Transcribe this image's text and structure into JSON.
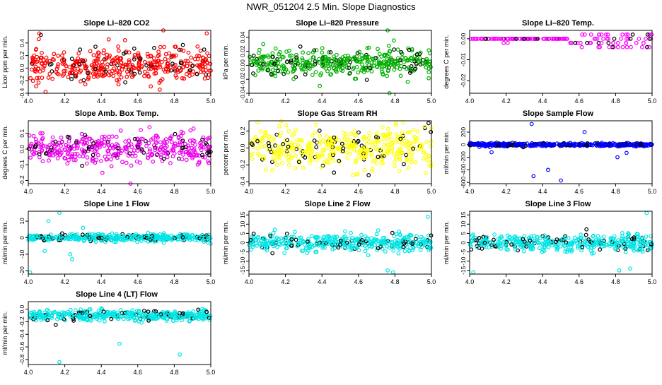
{
  "title": "NWR_051204  2.5 Min. Slope Diagnostics",
  "chart_data": [
    {
      "type": "scatter",
      "title": "Slope Li–820 CO2",
      "ylabel": "Licor ppm per min.",
      "xlim": [
        4.0,
        5.0
      ],
      "ylim": [
        -0.4,
        0.6
      ],
      "xticks": [
        "4.0",
        "4.2",
        "4.4",
        "4.6",
        "4.8",
        "5.0"
      ],
      "yticks": [
        -0.4,
        -0.2,
        0.0,
        0.2,
        0.4
      ],
      "ytick_labels": [
        "-0.4",
        "-0.2",
        "0.0",
        "0.2",
        "0.4"
      ],
      "colors": [
        "#ff0000",
        "#000000"
      ],
      "spread": 0.32,
      "center": 0.05,
      "count": 420,
      "outliers": [
        [
          4.06,
          0.55
        ],
        [
          4.74,
          0.6
        ]
      ],
      "seed": 11
    },
    {
      "type": "scatter",
      "title": "Slope Li–820 Pressure",
      "ylabel": "kPa per min.",
      "xlim": [
        4.0,
        5.0
      ],
      "ylim": [
        -0.04,
        0.05
      ],
      "xticks": [
        "4.0",
        "4.2",
        "4.4",
        "4.6",
        "4.8",
        "5.0"
      ],
      "yticks": [
        -0.04,
        -0.02,
        0.0,
        0.02,
        0.04
      ],
      "ytick_labels": [
        "-0.04",
        "-0.02",
        "0.00",
        "0.02",
        "0.04"
      ],
      "colors": [
        "#00b000",
        "#000000"
      ],
      "spread": 0.022,
      "center": 0.004,
      "count": 420,
      "outliers": [
        [
          4.76,
          0.05
        ],
        [
          4.77,
          -0.04
        ]
      ],
      "seed": 23
    },
    {
      "type": "scatter",
      "title": "Slope Li–820 Temp.",
      "ylabel": "degrees C per min.",
      "xlim": [
        4.0,
        5.0
      ],
      "ylim": [
        -0.026,
        0.004
      ],
      "xticks": [
        "4.0",
        "4.2",
        "4.4",
        "4.6",
        "4.8",
        "5.0"
      ],
      "yticks": [
        -0.02,
        -0.01,
        0.0
      ],
      "ytick_labels": [
        "-0.02",
        "-0.01",
        "0.00"
      ],
      "colors": [
        "#ff00ff",
        "#000000"
      ],
      "mode": "levels",
      "levels": [
        0.002,
        0.0,
        -0.002,
        -0.004
      ],
      "count": 160,
      "seed": 37
    },
    {
      "type": "scatter",
      "title": "Slope Amb. Box Temp.",
      "ylabel": "degrees C per min.",
      "xlim": [
        4.0,
        5.0
      ],
      "ylim": [
        -0.22,
        0.18
      ],
      "xticks": [
        "4.0",
        "4.2",
        "4.4",
        "4.6",
        "4.8",
        "5.0"
      ],
      "yticks": [
        -0.2,
        -0.1,
        0.0,
        0.1
      ],
      "ytick_labels": [
        "-0.2",
        "-0.1",
        "0.0",
        "0.1"
      ],
      "colors": [
        "#ee00ee",
        "#000000"
      ],
      "spread": 0.11,
      "center": 0.0,
      "count": 420,
      "outliers": [
        [
          4.56,
          -0.22
        ]
      ],
      "seed": 41
    },
    {
      "type": "scatter",
      "title": "Slope Gas Stream RH",
      "ylabel": "percent per min.",
      "xlim": [
        4.0,
        5.0
      ],
      "ylim": [
        -0.42,
        0.32
      ],
      "xticks": [
        "4.0",
        "4.2",
        "4.4",
        "4.6",
        "4.8",
        "5.0"
      ],
      "yticks": [
        -0.4,
        -0.2,
        0.0,
        0.2
      ],
      "ytick_labels": [
        "-0.4",
        "-0.2",
        "0.0",
        "0.2"
      ],
      "colors": [
        "#ffff00",
        "#000000"
      ],
      "spread": 0.3,
      "center": 0.0,
      "count": 440,
      "outliers": [],
      "seed": 53
    },
    {
      "type": "scatter",
      "title": "Slope Sample Flow",
      "ylabel": "ml/min per min.",
      "xlim": [
        4.0,
        5.0
      ],
      "ylim": [
        -620,
        380
      ],
      "xticks": [
        "4.0",
        "4.2",
        "4.4",
        "4.6",
        "4.8",
        "5.0"
      ],
      "yticks": [
        -600,
        -400,
        -200,
        0,
        200
      ],
      "ytick_labels": [
        "-600",
        "-400",
        "-200",
        "0",
        "200"
      ],
      "colors": [
        "#0000ff",
        "#000000"
      ],
      "mode": "flat",
      "band": 25,
      "count": 420,
      "outliers": [
        [
          4.34,
          330
        ],
        [
          4.35,
          -500
        ],
        [
          4.43,
          -400
        ],
        [
          4.5,
          -570
        ],
        [
          4.81,
          -200
        ],
        [
          4.86,
          -130
        ],
        [
          4.63,
          200
        ],
        [
          4.12,
          -120
        ]
      ],
      "seed": 67
    },
    {
      "type": "scatter",
      "title": "Slope Line 1 Flow",
      "ylabel": "ml/min per min.",
      "xlim": [
        4.0,
        5.0
      ],
      "ylim": [
        -22,
        16
      ],
      "xticks": [
        "4.0",
        "4.2",
        "4.4",
        "4.6",
        "4.8",
        "5.0"
      ],
      "yticks": [
        -20,
        -10,
        0,
        10
      ],
      "ytick_labels": [
        "-20",
        "-10",
        "0",
        "10"
      ],
      "colors": [
        "#00e5e5",
        "#000000"
      ],
      "mode": "flat",
      "band": 2.2,
      "count": 420,
      "outliers": [
        [
          4.01,
          -21
        ],
        [
          4.17,
          15
        ],
        [
          4.11,
          10
        ],
        [
          4.23,
          -10
        ],
        [
          4.24,
          -13
        ],
        [
          4.09,
          -8
        ],
        [
          4.3,
          6
        ]
      ],
      "seed": 71
    },
    {
      "type": "scatter",
      "title": "Slope Line 2 Flow",
      "ylabel": "ml/min per min.",
      "xlim": [
        4.0,
        5.0
      ],
      "ylim": [
        -17,
        17
      ],
      "xticks": [
        "4.0",
        "4.2",
        "4.4",
        "4.6",
        "4.8",
        "5.0"
      ],
      "yticks": [
        -15,
        -10,
        -5,
        0,
        5,
        10,
        15
      ],
      "ytick_labels": [
        "-15",
        "-10",
        "-5",
        "0",
        "5",
        "10",
        "15"
      ],
      "colors": [
        "#00e5e5",
        "#000000"
      ],
      "spread": 5.5,
      "center": 0.0,
      "count": 420,
      "outliers": [
        [
          4.76,
          -15
        ],
        [
          4.98,
          14
        ],
        [
          4.79,
          -16
        ]
      ],
      "seed": 83
    },
    {
      "type": "scatter",
      "title": "Slope Line 3 Flow",
      "ylabel": "ml/min per min.",
      "xlim": [
        4.0,
        5.0
      ],
      "ylim": [
        -17,
        17
      ],
      "xticks": [
        "4.0",
        "4.2",
        "4.4",
        "4.6",
        "4.8",
        "5.0"
      ],
      "yticks": [
        -15,
        -10,
        -5,
        0,
        5,
        10,
        15
      ],
      "ytick_labels": [
        "-15",
        "-10",
        "-5",
        "0",
        "5",
        "10",
        "15"
      ],
      "colors": [
        "#00e5e5",
        "#000000"
      ],
      "spread": 5.5,
      "center": 0.0,
      "count": 420,
      "outliers": [
        [
          4.02,
          -16
        ],
        [
          4.97,
          16
        ],
        [
          4.82,
          -15
        ],
        [
          4.88,
          -14
        ]
      ],
      "seed": 97
    },
    {
      "type": "scatter",
      "title": "Slope Line 4 (LT) Flow",
      "ylabel": "ml/min per min.",
      "xlim": [
        4.0,
        5.0
      ],
      "ylim": [
        -0.88,
        0.12
      ],
      "xticks": [
        "4.0",
        "4.2",
        "4.4",
        "4.6",
        "4.8",
        "5.0"
      ],
      "yticks": [
        -0.8,
        -0.6,
        -0.4,
        -0.2,
        0.0
      ],
      "ytick_labels": [
        "-0.8",
        "-0.6",
        "-0.4",
        "-0.2",
        "0.0"
      ],
      "colors": [
        "#00e5e5",
        "#000000"
      ],
      "spread": 0.1,
      "center": -0.1,
      "count": 420,
      "outliers": [
        [
          4.17,
          -0.84
        ],
        [
          4.83,
          -0.72
        ],
        [
          4.5,
          -0.55
        ]
      ],
      "seed": 103
    }
  ]
}
